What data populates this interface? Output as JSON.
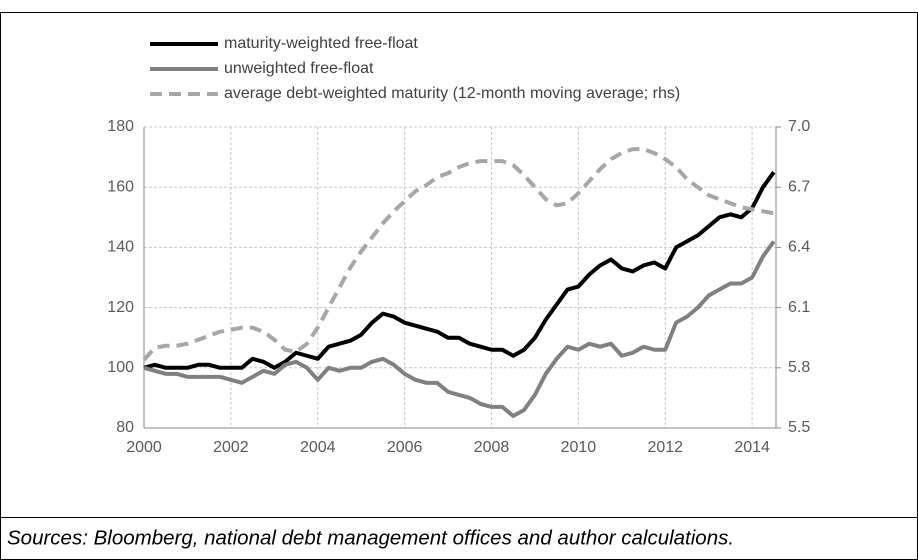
{
  "chart_data": {
    "type": "line",
    "x": [
      2000,
      2000.25,
      2000.5,
      2000.75,
      2001,
      2001.25,
      2001.5,
      2001.75,
      2002,
      2002.25,
      2002.5,
      2002.75,
      2003,
      2003.25,
      2003.5,
      2003.75,
      2004,
      2004.25,
      2004.5,
      2004.75,
      2005,
      2005.25,
      2005.5,
      2005.75,
      2006,
      2006.25,
      2006.5,
      2006.75,
      2007,
      2007.25,
      2007.5,
      2007.75,
      2008,
      2008.25,
      2008.5,
      2008.75,
      2009,
      2009.25,
      2009.5,
      2009.75,
      2010,
      2010.25,
      2010.5,
      2010.75,
      2011,
      2011.25,
      2011.5,
      2011.75,
      2012,
      2012.25,
      2012.5,
      2012.75,
      2013,
      2013.25,
      2013.5,
      2013.75,
      2014,
      2014.25,
      2014.5
    ],
    "series": [
      {
        "name": "maturity-weighted free-float",
        "color": "#000000",
        "values": [
          100,
          101,
          100,
          100,
          100,
          101,
          101,
          100,
          100,
          100,
          103,
          102,
          100,
          102,
          105,
          104,
          103,
          107,
          108,
          109,
          111,
          115,
          118,
          117,
          115,
          114,
          113,
          112,
          110,
          110,
          108,
          107,
          106,
          106,
          104,
          106,
          110,
          116,
          121,
          126,
          127,
          131,
          134,
          136,
          133,
          132,
          134,
          135,
          133,
          140,
          142,
          144,
          147,
          150,
          151,
          150,
          153,
          160,
          165
        ]
      },
      {
        "name": "unweighted free-float",
        "color": "#808080",
        "values": [
          100,
          99,
          98,
          98,
          97,
          97,
          97,
          97,
          96,
          95,
          97,
          99,
          98,
          101,
          102,
          100,
          96,
          100,
          99,
          100,
          100,
          102,
          103,
          101,
          98,
          96,
          95,
          95,
          92,
          91,
          90,
          88,
          87,
          87,
          84,
          86,
          91,
          98,
          103,
          107,
          106,
          108,
          107,
          108,
          104,
          105,
          107,
          106,
          106,
          115,
          117,
          120,
          124,
          126,
          128,
          128,
          130,
          137,
          142
        ]
      },
      {
        "name": "average debt-weighted maturity (12-month moving average; rhs)",
        "color": "#a6a6a6",
        "axis": "y2",
        "linestyle": "dashed",
        "values": [
          5.84,
          5.9,
          5.91,
          5.91,
          5.92,
          5.94,
          5.96,
          5.98,
          5.99,
          6.0,
          6.0,
          5.98,
          5.94,
          5.89,
          5.88,
          5.92,
          6.0,
          6.1,
          6.2,
          6.3,
          6.38,
          6.45,
          6.52,
          6.58,
          6.63,
          6.68,
          6.71,
          6.75,
          6.77,
          6.8,
          6.82,
          6.83,
          6.83,
          6.83,
          6.81,
          6.76,
          6.7,
          6.64,
          6.61,
          6.62,
          6.67,
          6.73,
          6.79,
          6.84,
          6.87,
          6.89,
          6.89,
          6.87,
          6.84,
          6.8,
          6.74,
          6.7,
          6.66,
          6.64,
          6.62,
          6.6,
          6.59,
          6.58,
          6.57
        ]
      }
    ],
    "xlim": [
      2000,
      2014.55
    ],
    "xticks": [
      2000,
      2002,
      2004,
      2006,
      2008,
      2010,
      2012,
      2014
    ],
    "ylim": [
      80,
      180
    ],
    "yticks": [
      80,
      100,
      120,
      140,
      160,
      180
    ],
    "y2lim": [
      5.5,
      7.0
    ],
    "y2ticks": [
      5.5,
      5.8,
      6.1,
      6.4,
      6.7,
      {
        "value": 7.0,
        "label": "7.0"
      }
    ],
    "grid": true
  },
  "source": "Sources: Bloomberg, national debt management offices and author calculations."
}
